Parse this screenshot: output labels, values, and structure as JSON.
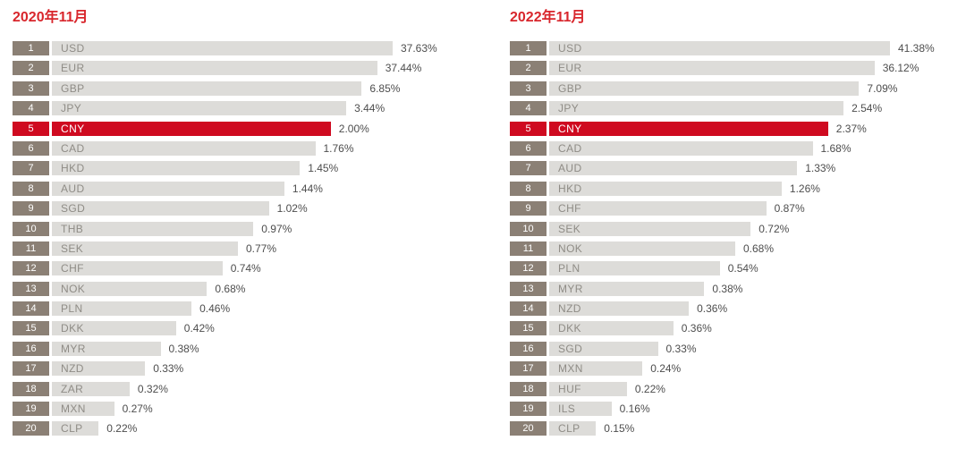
{
  "colors": {
    "title_red": "#d8262c",
    "highlight_red": "#cf0a20",
    "rank_badge_bg": "#8b8075",
    "bar_bg": "#dddcd9",
    "currency_text": "#8f8c86",
    "currency_text_highlight": "#ffffff",
    "value_text": "#4d4d4d",
    "background": "#ffffff"
  },
  "chart_data": [
    {
      "type": "bar",
      "orientation": "horizontal",
      "title": "2020年11月",
      "unit": "%",
      "legend": "none",
      "grid": false,
      "bar_scale": "rank-ladder: bar length decreases by a constant step per rank, not proportional to value",
      "highlight_index": 4,
      "highlight_category": "CNY",
      "ranks": [
        "1",
        "2",
        "3",
        "4",
        "5",
        "6",
        "7",
        "8",
        "9",
        "10",
        "11",
        "12",
        "13",
        "14",
        "15",
        "16",
        "17",
        "18",
        "19",
        "20"
      ],
      "categories": [
        "USD",
        "EUR",
        "GBP",
        "JPY",
        "CNY",
        "CAD",
        "HKD",
        "AUD",
        "SGD",
        "THB",
        "SEK",
        "CHF",
        "NOK",
        "PLN",
        "DKK",
        "MYR",
        "NZD",
        "ZAR",
        "MXN",
        "CLP"
      ],
      "values": [
        37.63,
        37.44,
        6.85,
        3.44,
        2.0,
        1.76,
        1.45,
        1.44,
        1.02,
        0.97,
        0.77,
        0.74,
        0.68,
        0.46,
        0.42,
        0.38,
        0.33,
        0.32,
        0.27,
        0.22
      ],
      "value_labels": [
        "37.63%",
        "37.44%",
        "6.85%",
        "3.44%",
        "2.00%",
        "1.76%",
        "1.45%",
        "1.44%",
        "1.02%",
        "0.97%",
        "0.77%",
        "0.74%",
        "0.68%",
        "0.46%",
        "0.42%",
        "0.38%",
        "0.33%",
        "0.32%",
        "0.27%",
        "0.22%"
      ]
    },
    {
      "type": "bar",
      "orientation": "horizontal",
      "title": "2022年11月",
      "unit": "%",
      "legend": "none",
      "grid": false,
      "bar_scale": "rank-ladder: bar length decreases by a constant step per rank, not proportional to value",
      "highlight_index": 4,
      "highlight_category": "CNY",
      "ranks": [
        "1",
        "2",
        "3",
        "4",
        "5",
        "6",
        "7",
        "8",
        "9",
        "10",
        "11",
        "12",
        "13",
        "14",
        "15",
        "16",
        "17",
        "18",
        "19",
        "20"
      ],
      "categories": [
        "USD",
        "EUR",
        "GBP",
        "JPY",
        "CNY",
        "CAD",
        "AUD",
        "HKD",
        "CHF",
        "SEK",
        "NOK",
        "PLN",
        "MYR",
        "NZD",
        "DKK",
        "SGD",
        "MXN",
        "HUF",
        "ILS",
        "CLP"
      ],
      "values": [
        41.38,
        36.12,
        7.09,
        2.54,
        2.37,
        1.68,
        1.33,
        1.26,
        0.87,
        0.72,
        0.68,
        0.54,
        0.38,
        0.36,
        0.36,
        0.33,
        0.24,
        0.22,
        0.16,
        0.15
      ],
      "value_labels": [
        "41.38%",
        "36.12%",
        "7.09%",
        "2.54%",
        "2.37%",
        "1.68%",
        "1.33%",
        "1.26%",
        "0.87%",
        "0.72%",
        "0.68%",
        "0.54%",
        "0.38%",
        "0.36%",
        "0.36%",
        "0.33%",
        "0.24%",
        "0.22%",
        "0.16%",
        "0.15%"
      ]
    }
  ]
}
